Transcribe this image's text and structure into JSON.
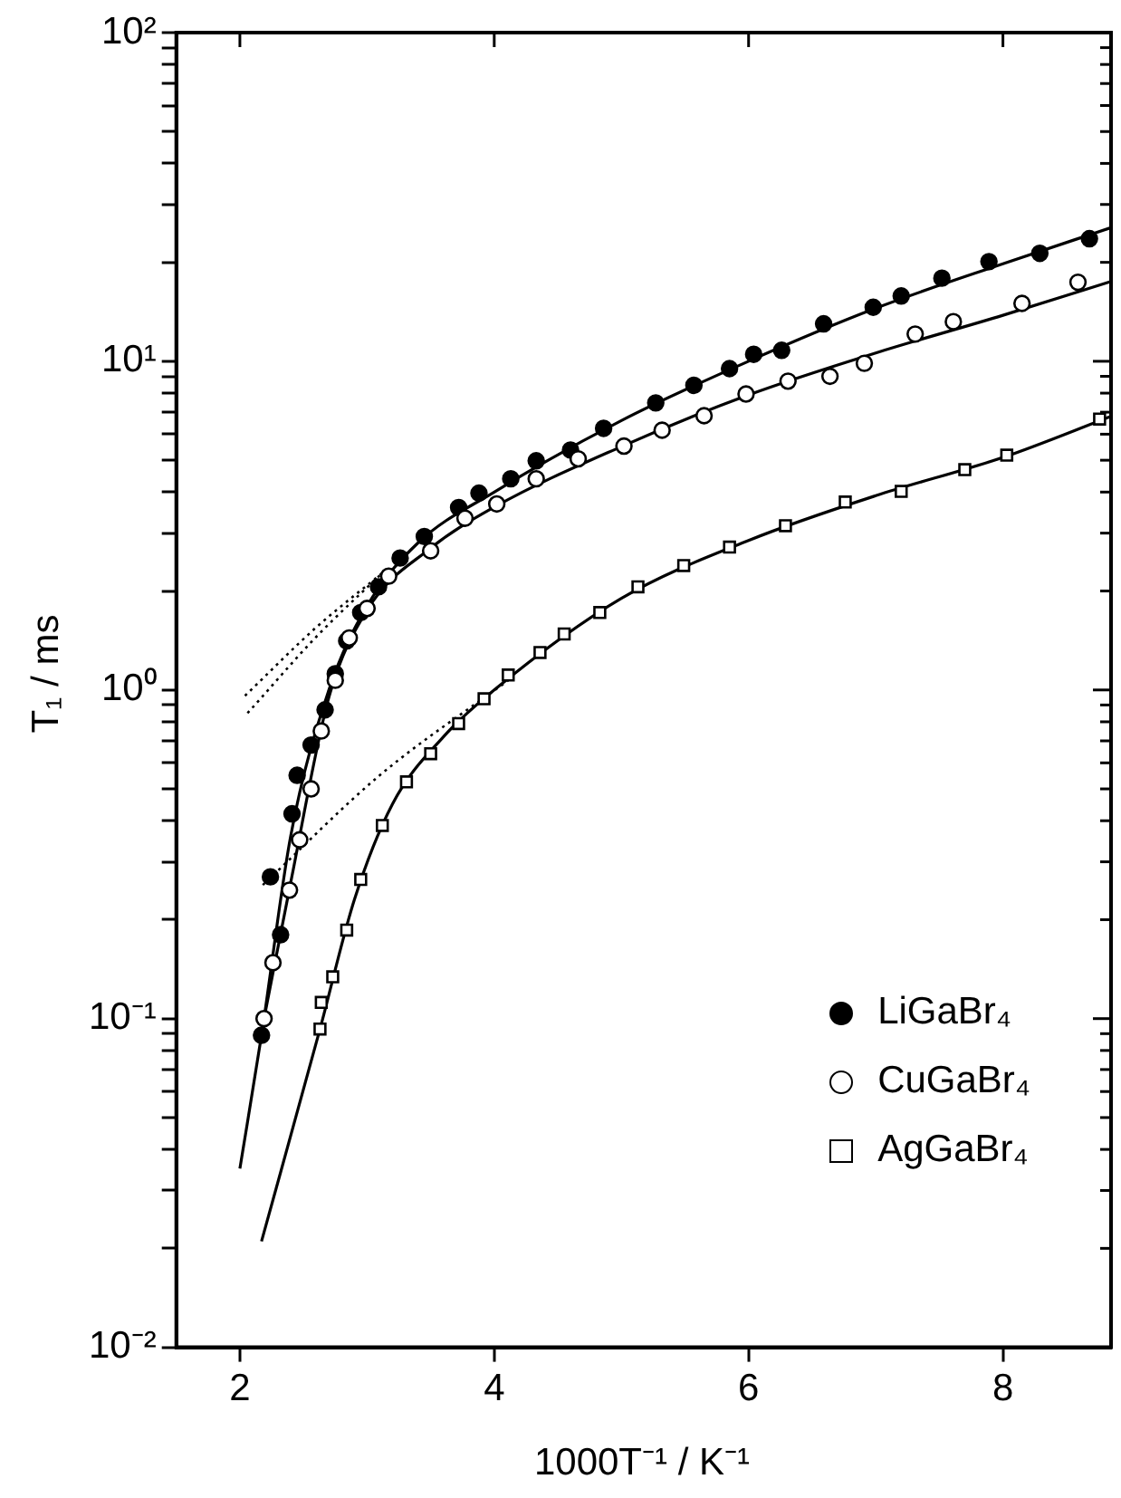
{
  "chart_data": {
    "type": "scatter",
    "xlabel": "1000T⁻¹ / K⁻¹",
    "ylabel": "T₁ / ms",
    "xlim": [
      1.5,
      8.85
    ],
    "xticks": [
      2,
      4,
      6,
      8
    ],
    "ylim": [
      0.01,
      100
    ],
    "log": "y",
    "yticks": [
      {
        "value": 0.01,
        "label": "10⁻²"
      },
      {
        "value": 0.02,
        "label": null
      },
      {
        "value": 0.03,
        "label": null
      },
      {
        "value": 0.04,
        "label": null
      },
      {
        "value": 0.05,
        "label": null
      },
      {
        "value": 0.06,
        "label": null
      },
      {
        "value": 0.07,
        "label": null
      },
      {
        "value": 0.08,
        "label": null
      },
      {
        "value": 0.09,
        "label": null
      },
      {
        "value": 0.1,
        "label": "10⁻¹"
      },
      {
        "value": 0.2,
        "label": null
      },
      {
        "value": 0.3,
        "label": null
      },
      {
        "value": 0.4,
        "label": null
      },
      {
        "value": 0.5,
        "label": null
      },
      {
        "value": 0.6,
        "label": null
      },
      {
        "value": 0.7,
        "label": null
      },
      {
        "value": 0.8,
        "label": null
      },
      {
        "value": 0.9,
        "label": null
      },
      {
        "value": 1,
        "label": "10⁰"
      },
      {
        "value": 2,
        "label": null
      },
      {
        "value": 3,
        "label": null
      },
      {
        "value": 4,
        "label": null
      },
      {
        "value": 5,
        "label": null
      },
      {
        "value": 6,
        "label": null
      },
      {
        "value": 7,
        "label": null
      },
      {
        "value": 8,
        "label": null
      },
      {
        "value": 9,
        "label": null
      },
      {
        "value": 10,
        "label": "10¹"
      },
      {
        "value": 20,
        "label": null
      },
      {
        "value": 30,
        "label": null
      },
      {
        "value": 40,
        "label": null
      },
      {
        "value": 50,
        "label": null
      },
      {
        "value": 60,
        "label": null
      },
      {
        "value": 70,
        "label": null
      },
      {
        "value": 80,
        "label": null
      },
      {
        "value": 90,
        "label": null
      },
      {
        "value": 100,
        "label": "10²"
      }
    ],
    "grid": false,
    "legend": "bottom right",
    "series": [
      {
        "name": "LiGaBr₄",
        "marker": "circle",
        "color": "#000000",
        "x": [
          2.17,
          2.24,
          2.32,
          2.41,
          2.45,
          2.56,
          2.67,
          2.75,
          2.84,
          2.95,
          3.09,
          3.26,
          3.45,
          3.72,
          3.88,
          4.13,
          4.33,
          4.6,
          4.86,
          5.27,
          5.57,
          5.85,
          6.04,
          6.26,
          6.59,
          6.98,
          7.2,
          7.52,
          7.89,
          8.29,
          8.68
        ],
        "values": [
          0.089,
          0.27,
          0.18,
          0.42,
          0.55,
          0.68,
          0.87,
          1.12,
          1.41,
          1.72,
          2.06,
          2.52,
          2.93,
          3.59,
          3.97,
          4.39,
          4.98,
          5.37,
          6.25,
          7.47,
          8.45,
          9.5,
          10.5,
          10.8,
          13.0,
          14.6,
          15.8,
          17.9,
          20.1,
          21.3,
          23.6
        ]
      },
      {
        "name": "CuGaBr₄",
        "marker": "circle-open",
        "color": "#000000",
        "x": [
          2.19,
          2.26,
          2.39,
          2.47,
          2.56,
          2.64,
          2.75,
          2.86,
          3.0,
          3.17,
          3.5,
          3.77,
          4.02,
          4.33,
          4.66,
          5.02,
          5.32,
          5.65,
          5.98,
          6.31,
          6.64,
          6.91,
          7.31,
          7.61,
          8.15,
          8.59
        ],
        "values": [
          0.1,
          0.148,
          0.246,
          0.35,
          0.5,
          0.75,
          1.07,
          1.44,
          1.77,
          2.22,
          2.65,
          3.33,
          3.68,
          4.39,
          5.05,
          5.52,
          6.17,
          6.83,
          7.95,
          8.7,
          9.0,
          9.86,
          12.1,
          13.2,
          15.0,
          17.4
        ]
      },
      {
        "name": "AgGaBr₄",
        "marker": "square-open",
        "color": "#000000",
        "x": [
          2.63,
          2.64,
          2.73,
          2.84,
          2.95,
          3.12,
          3.31,
          3.5,
          3.72,
          3.92,
          4.11,
          4.36,
          4.55,
          4.83,
          5.13,
          5.49,
          5.85,
          6.29,
          6.76,
          7.2,
          7.7,
          8.03,
          8.76
        ],
        "values": [
          0.093,
          0.112,
          0.134,
          0.186,
          0.265,
          0.387,
          0.525,
          0.64,
          0.79,
          0.94,
          1.11,
          1.3,
          1.48,
          1.72,
          2.06,
          2.39,
          2.72,
          3.16,
          3.73,
          4.02,
          4.68,
          5.18,
          6.67
        ]
      },
      {
        "type": "line",
        "marker": "none",
        "line_style": "solid",
        "color": "#000000",
        "x": [
          2.0,
          2.17,
          2.4,
          2.7,
          3.0,
          3.4,
          4.0,
          5.0,
          6.0,
          7.0,
          8.0,
          8.85
        ],
        "values": [
          0.035,
          0.089,
          0.36,
          1.0,
          1.8,
          2.8,
          4.0,
          6.6,
          10,
          14.5,
          19.8,
          25.5
        ]
      },
      {
        "type": "line",
        "marker": "none",
        "line_style": "solid",
        "color": "#000000",
        "x": [
          2.19,
          2.4,
          2.7,
          3.0,
          3.5,
          4.0,
          5.0,
          6.0,
          7.0,
          8.0,
          8.85
        ],
        "values": [
          0.1,
          0.26,
          0.95,
          1.75,
          2.7,
          3.6,
          5.5,
          7.9,
          10.6,
          13.8,
          17.5
        ]
      },
      {
        "type": "line",
        "marker": "none",
        "line_style": "solid",
        "color": "#000000",
        "x": [
          2.17,
          2.63,
          2.9,
          3.2,
          3.6,
          4.0,
          5.0,
          6.0,
          7.0,
          8.0,
          8.85
        ],
        "values": [
          0.021,
          0.093,
          0.23,
          0.45,
          0.72,
          1.0,
          1.9,
          2.85,
          3.9,
          5.1,
          6.8
        ]
      },
      {
        "type": "line",
        "marker": "none",
        "line_style": "dotted",
        "color": "#000000",
        "x": [
          2.04,
          2.6,
          3.12
        ],
        "values": [
          0.96,
          1.55,
          2.27
        ]
      },
      {
        "type": "line",
        "marker": "none",
        "line_style": "dotted",
        "color": "#000000",
        "x": [
          2.06,
          2.6,
          3.12
        ],
        "values": [
          0.85,
          1.45,
          2.27
        ]
      },
      {
        "type": "line",
        "marker": "none",
        "line_style": "dotted",
        "color": "#000000",
        "x": [
          2.18,
          3.1,
          4.11
        ],
        "values": [
          0.255,
          0.55,
          1.07
        ]
      }
    ]
  }
}
